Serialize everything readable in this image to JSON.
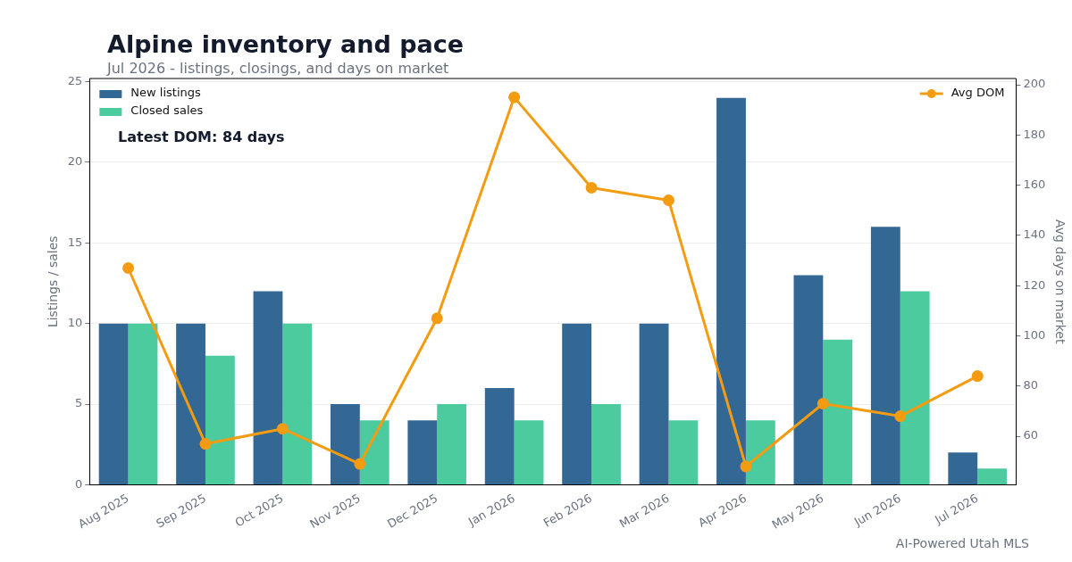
{
  "chart_data": {
    "type": "bar",
    "title": "Alpine inventory and pace",
    "subtitle": "Jul 2026 - listings, closings, and days on market",
    "categories": [
      "Aug 2025",
      "Sep 2025",
      "Oct 2025",
      "Nov 2025",
      "Dec 2025",
      "Jan 2026",
      "Feb 2026",
      "Mar 2026",
      "Apr 2026",
      "May 2026",
      "Jun 2026",
      "Jul 2026"
    ],
    "series": [
      {
        "name": "New listings",
        "color": "#336794",
        "values": [
          10,
          10,
          12,
          5,
          4,
          6,
          10,
          10,
          24,
          13,
          16,
          2
        ]
      },
      {
        "name": "Closed sales",
        "color": "#4bcb9e",
        "values": [
          10,
          8,
          10,
          4,
          5,
          4,
          5,
          4,
          4,
          9,
          12,
          1
        ]
      },
      {
        "name": "Avg DOM",
        "type": "line",
        "axis": "y2",
        "color": "#f39c12",
        "marker": "circle",
        "values": [
          127,
          57,
          63,
          49,
          107,
          195,
          159,
          154,
          48,
          73,
          68,
          84
        ]
      }
    ],
    "ylabel": "Listings / sales",
    "y2label": "Avg days on market",
    "ylim": [
      0,
      25.2
    ],
    "yticks": [
      0,
      5,
      10,
      15,
      20,
      25
    ],
    "y2lim": [
      40.7,
      202.5
    ],
    "y2ticks": [
      60,
      80,
      100,
      120,
      140,
      160,
      180,
      200
    ],
    "grid": "y",
    "legend": "top left",
    "annotations": [
      "Latest DOM: 84 days",
      "AI-Powered Utah MLS"
    ]
  }
}
